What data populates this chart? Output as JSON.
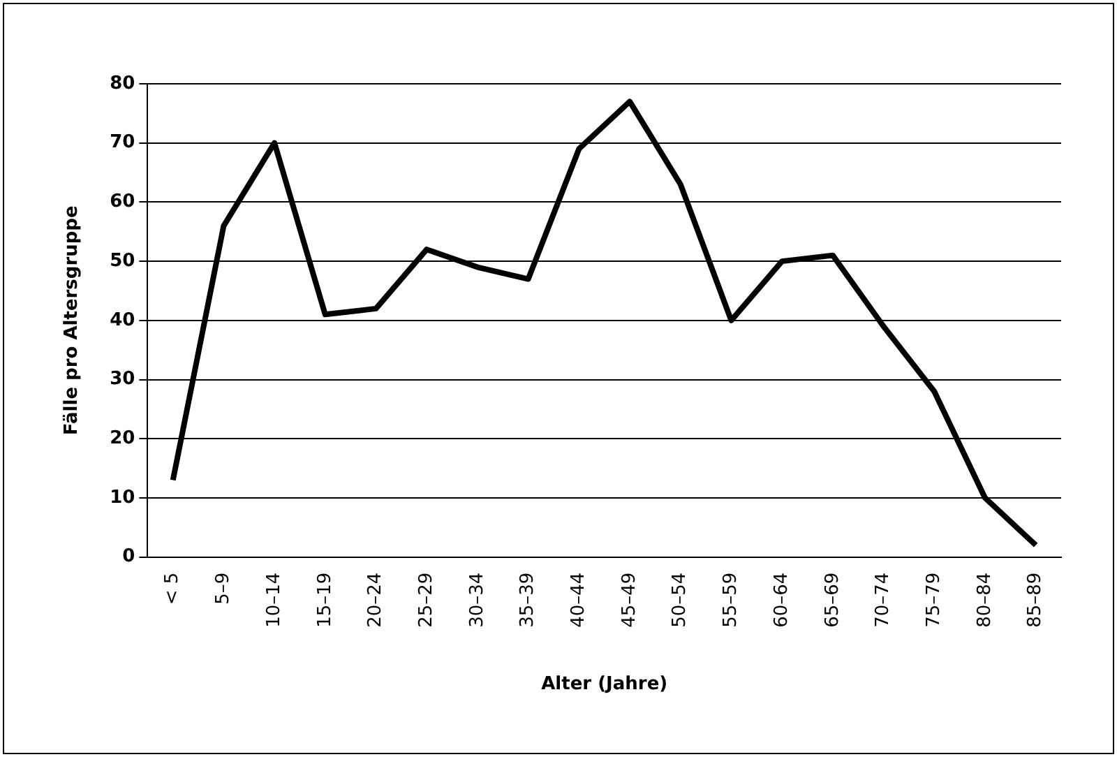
{
  "chart_data": {
    "type": "line",
    "xlabel": "Alter (Jahre)",
    "ylabel": "Fälle pro Altersgruppe",
    "categories": [
      "< 5",
      "5–9",
      "10–14",
      "15–19",
      "20–24",
      "25–29",
      "30–34",
      "35–39",
      "40–44",
      "45–49",
      "50–54",
      "55–59",
      "60–64",
      "65–69",
      "70–74",
      "75–79",
      "80–84",
      "85–89"
    ],
    "series": [
      {
        "color": "#000000",
        "values": [
          13,
          56,
          70,
          41,
          42,
          52,
          49,
          47,
          69,
          77,
          63,
          40,
          50,
          51,
          39,
          28,
          10,
          2
        ]
      }
    ],
    "ylim": [
      0,
      80
    ],
    "yticks": [
      0,
      10,
      20,
      30,
      40,
      50,
      60,
      70,
      80
    ],
    "grid": "y",
    "legend": false,
    "marker": "none",
    "line_style": "solid"
  }
}
